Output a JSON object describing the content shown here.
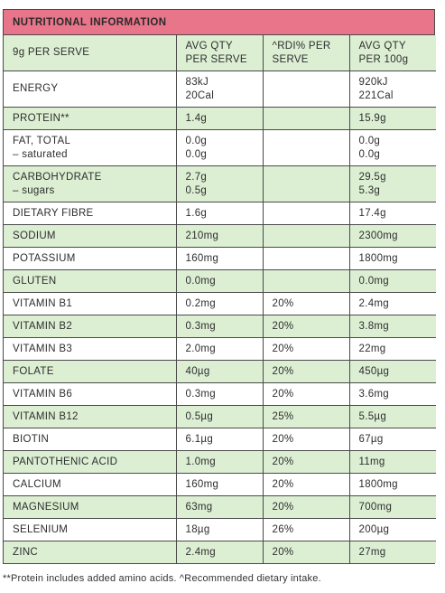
{
  "title": "NUTRITIONAL INFORMATION",
  "header": {
    "col1": "9g PER SERVE",
    "col2_line1": "AVG QTY",
    "col2_line2": "PER SERVE",
    "col3_line1": "^RDI% PER",
    "col3_line2": "SERVE",
    "col4_line1": "AVG QTY",
    "col4_line2": "PER 100g"
  },
  "rows": [
    {
      "name": "ENERGY",
      "name_sub": "",
      "serve": "83kJ",
      "serve_sub": "20Cal",
      "rdi": "",
      "per100": "920kJ",
      "per100_sub": "221Cal",
      "shade": "white"
    },
    {
      "name": "PROTEIN**",
      "name_sub": "",
      "serve": "1.4g",
      "serve_sub": "",
      "rdi": "",
      "per100": "15.9g",
      "per100_sub": "",
      "shade": "green"
    },
    {
      "name": "FAT, TOTAL",
      "name_sub": "– saturated",
      "serve": "0.0g",
      "serve_sub": "0.0g",
      "rdi": "",
      "per100": "0.0g",
      "per100_sub": "0.0g",
      "shade": "white"
    },
    {
      "name": "CARBOHYDRATE",
      "name_sub": "– sugars",
      "serve": "2.7g",
      "serve_sub": "0.5g",
      "rdi": "",
      "per100": "29.5g",
      "per100_sub": "5.3g",
      "shade": "green"
    },
    {
      "name": "DIETARY FIBRE",
      "name_sub": "",
      "serve": "1.6g",
      "serve_sub": "",
      "rdi": "",
      "per100": "17.4g",
      "per100_sub": "",
      "shade": "white"
    },
    {
      "name": "SODIUM",
      "name_sub": "",
      "serve": "210mg",
      "serve_sub": "",
      "rdi": "",
      "per100": "2300mg",
      "per100_sub": "",
      "shade": "green"
    },
    {
      "name": "POTASSIUM",
      "name_sub": "",
      "serve": "160mg",
      "serve_sub": "",
      "rdi": "",
      "per100": "1800mg",
      "per100_sub": "",
      "shade": "white"
    },
    {
      "name": "GLUTEN",
      "name_sub": "",
      "serve": "0.0mg",
      "serve_sub": "",
      "rdi": "",
      "per100": "0.0mg",
      "per100_sub": "",
      "shade": "green"
    },
    {
      "name": "VITAMIN B1",
      "name_sub": "",
      "serve": "0.2mg",
      "serve_sub": "",
      "rdi": "20%",
      "per100": "2.4mg",
      "per100_sub": "",
      "shade": "white"
    },
    {
      "name": "VITAMIN B2",
      "name_sub": "",
      "serve": "0.3mg",
      "serve_sub": "",
      "rdi": "20%",
      "per100": "3.8mg",
      "per100_sub": "",
      "shade": "green"
    },
    {
      "name": "VITAMIN B3",
      "name_sub": "",
      "serve": "2.0mg",
      "serve_sub": "",
      "rdi": "20%",
      "per100": "22mg",
      "per100_sub": "",
      "shade": "white"
    },
    {
      "name": "FOLATE",
      "name_sub": "",
      "serve": "40µg",
      "serve_sub": "",
      "rdi": "20%",
      "per100": "450µg",
      "per100_sub": "",
      "shade": "green"
    },
    {
      "name": "VITAMIN B6",
      "name_sub": "",
      "serve": "0.3mg",
      "serve_sub": "",
      "rdi": "20%",
      "per100": "3.6mg",
      "per100_sub": "",
      "shade": "white"
    },
    {
      "name": "VITAMIN B12",
      "name_sub": "",
      "serve": "0.5µg",
      "serve_sub": "",
      "rdi": "25%",
      "per100": "5.5µg",
      "per100_sub": "",
      "shade": "green"
    },
    {
      "name": "BIOTIN",
      "name_sub": "",
      "serve": "6.1µg",
      "serve_sub": "",
      "rdi": "20%",
      "per100": "67µg",
      "per100_sub": "",
      "shade": "white"
    },
    {
      "name": "PANTOTHENIC ACID",
      "name_sub": "",
      "serve": "1.0mg",
      "serve_sub": "",
      "rdi": "20%",
      "per100": "11mg",
      "per100_sub": "",
      "shade": "green"
    },
    {
      "name": "CALCIUM",
      "name_sub": "",
      "serve": "160mg",
      "serve_sub": "",
      "rdi": "20%",
      "per100": "1800mg",
      "per100_sub": "",
      "shade": "white"
    },
    {
      "name": "MAGNESIUM",
      "name_sub": "",
      "serve": "63mg",
      "serve_sub": "",
      "rdi": "20%",
      "per100": "700mg",
      "per100_sub": "",
      "shade": "green"
    },
    {
      "name": "SELENIUM",
      "name_sub": "",
      "serve": "18µg",
      "serve_sub": "",
      "rdi": "26%",
      "per100": "200µg",
      "per100_sub": "",
      "shade": "white"
    },
    {
      "name": "ZINC",
      "name_sub": "",
      "serve": "2.4mg",
      "serve_sub": "",
      "rdi": "20%",
      "per100": "27mg",
      "per100_sub": "",
      "shade": "green"
    }
  ],
  "footnote": "**Protein includes added amino acids. ^Recommended dietary intake.",
  "colors": {
    "title_bg": "#e8758a",
    "green_row": "#dcefd3",
    "border": "#4a4a4a"
  }
}
